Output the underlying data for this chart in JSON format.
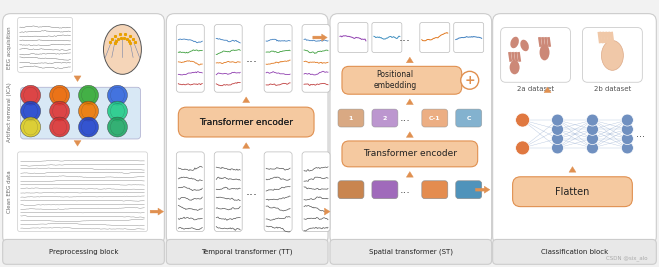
{
  "fig_width": 6.59,
  "fig_height": 2.67,
  "dpi": 100,
  "bg_color": "#f2f2f2",
  "block_labels": [
    "Preprocessing block",
    "Temporal transformer (TT)",
    "Spatial transformer (ST)",
    "Classification block"
  ],
  "orange_fill": "#f5c9a0",
  "orange_edge": "#e09050",
  "orange_arrow": "#e09050",
  "signal_colors_tt": [
    "#c04040",
    "#9040b0",
    "#e07820",
    "#40a040",
    "#4080c0"
  ],
  "signal_colors_st": [
    "#9040b0",
    "#4090c0",
    "#e07820",
    "#4080c0"
  ],
  "token_colors": [
    "#c07030",
    "#9050b0",
    "#e07830",
    "#3080b0"
  ],
  "out_token_colors": [
    "#c07030",
    "#9050b0",
    "#e07830",
    "#3080b0"
  ],
  "node_orange": "#e07840",
  "node_blue": "#7090c0",
  "node_blue_light": "#90b0d8",
  "watermark": "CSDN @six_alo"
}
